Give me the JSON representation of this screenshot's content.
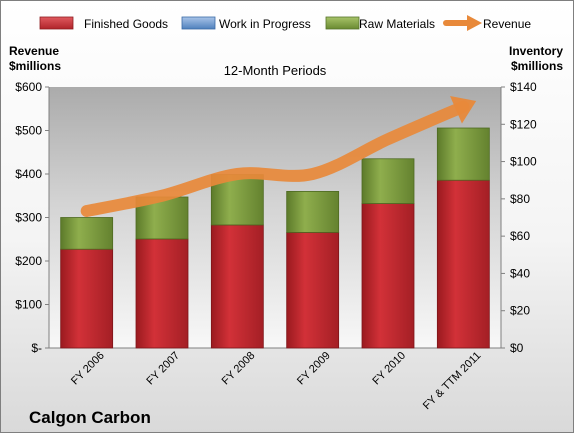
{
  "chart_data": {
    "type": "bar",
    "subtitle": "12-Month Periods",
    "company": "Calgon Carbon",
    "left_axis_title_line1": "Revenue",
    "left_axis_title_line2": "$millions",
    "right_axis_title_line1": "Inventory",
    "right_axis_title_line2": "$millions",
    "categories": [
      "FY 2006",
      "FY 2007",
      "FY 2008",
      "FY 2009",
      "FY 2010",
      "FY & TTM 2011"
    ],
    "left_ticks": [
      "$-",
      "$100",
      "$200",
      "$300",
      "$400",
      "$500",
      "$600"
    ],
    "right_ticks": [
      "$0",
      "$20",
      "$40",
      "$60",
      "$80",
      "$100",
      "$120",
      "$140"
    ],
    "left_ylim": [
      0,
      600
    ],
    "right_ylim": [
      0,
      140
    ],
    "stacked": true,
    "legend_position": "top",
    "series": [
      {
        "name": "Finished Goods",
        "axis": "right",
        "kind": "bar",
        "color": "#c0262c",
        "values": [
          53,
          58.5,
          66,
          62,
          77.5,
          90
        ]
      },
      {
        "name": "Work in Progress",
        "axis": "right",
        "kind": "bar",
        "color": "#4f81bd",
        "values": [
          0,
          0,
          0,
          0,
          0,
          0
        ]
      },
      {
        "name": "Raw Materials",
        "axis": "right",
        "kind": "bar",
        "color": "#77933c",
        "values": [
          17,
          22.5,
          27,
          22,
          24,
          28
        ]
      },
      {
        "name": "Revenue",
        "axis": "left",
        "kind": "line",
        "color": "#e8893a",
        "values": [
          315,
          350,
          400,
          400,
          480,
          555
        ]
      }
    ]
  }
}
